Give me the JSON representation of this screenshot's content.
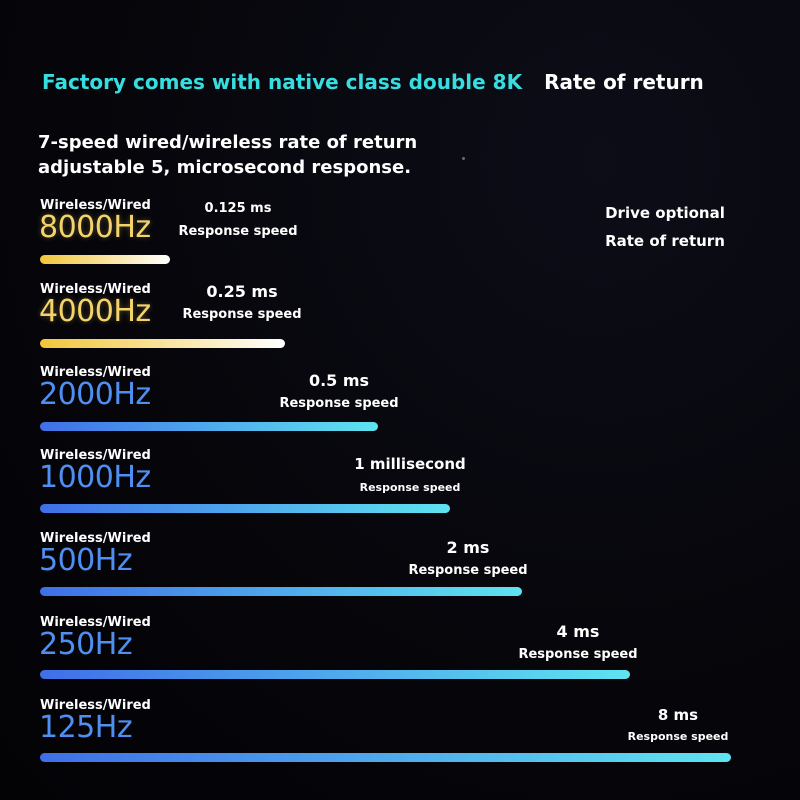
{
  "headline": {
    "accent": "Factory comes with native class double 8K",
    "plain": "Rate of return"
  },
  "subhead": {
    "line1": "7-speed wired/wireless rate of return",
    "line2": "adjustable 5, microsecond response."
  },
  "side_note": {
    "line1": "Drive optional",
    "line2": "Rate of return"
  },
  "tiers": [
    {
      "label": "Wireless/Wired",
      "hz": "8000Hz",
      "value": "0.125 ms",
      "caption": "Response speed",
      "bar_fraction": 0.18,
      "style": "gold"
    },
    {
      "label": "Wireless/Wired",
      "hz": "4000Hz",
      "value": "0.25 ms",
      "caption": "Response speed",
      "bar_fraction": 0.34,
      "style": "gold"
    },
    {
      "label": "Wireless/Wired",
      "hz": "2000Hz",
      "value": "0.5 ms",
      "caption": "Response speed",
      "bar_fraction": 0.47,
      "style": "blue"
    },
    {
      "label": "Wireless/Wired",
      "hz": "1000Hz",
      "value": "1 millisecond",
      "caption": "Response speed",
      "bar_fraction": 0.57,
      "style": "blue"
    },
    {
      "label": "Wireless/Wired",
      "hz": "500Hz",
      "value": "2 ms",
      "caption": "Response speed",
      "bar_fraction": 0.67,
      "style": "blue"
    },
    {
      "label": "Wireless/Wired",
      "hz": "250Hz",
      "value": "4 ms",
      "caption": "Response speed",
      "bar_fraction": 0.82,
      "style": "blue"
    },
    {
      "label": "Wireless/Wired",
      "hz": "125Hz",
      "value": "8 ms",
      "caption": "Response speed",
      "bar_fraction": 0.96,
      "style": "blue"
    }
  ],
  "colors": {
    "accent": "#38dde0",
    "gold_text": "#f3d36a",
    "blue_text": "#4f8ff2",
    "gold_bar_start": "#f2c63a",
    "gold_bar_end": "#ffffff",
    "blue_bar_start": "#3f6fe8",
    "blue_bar_end": "#5ee4f0"
  }
}
